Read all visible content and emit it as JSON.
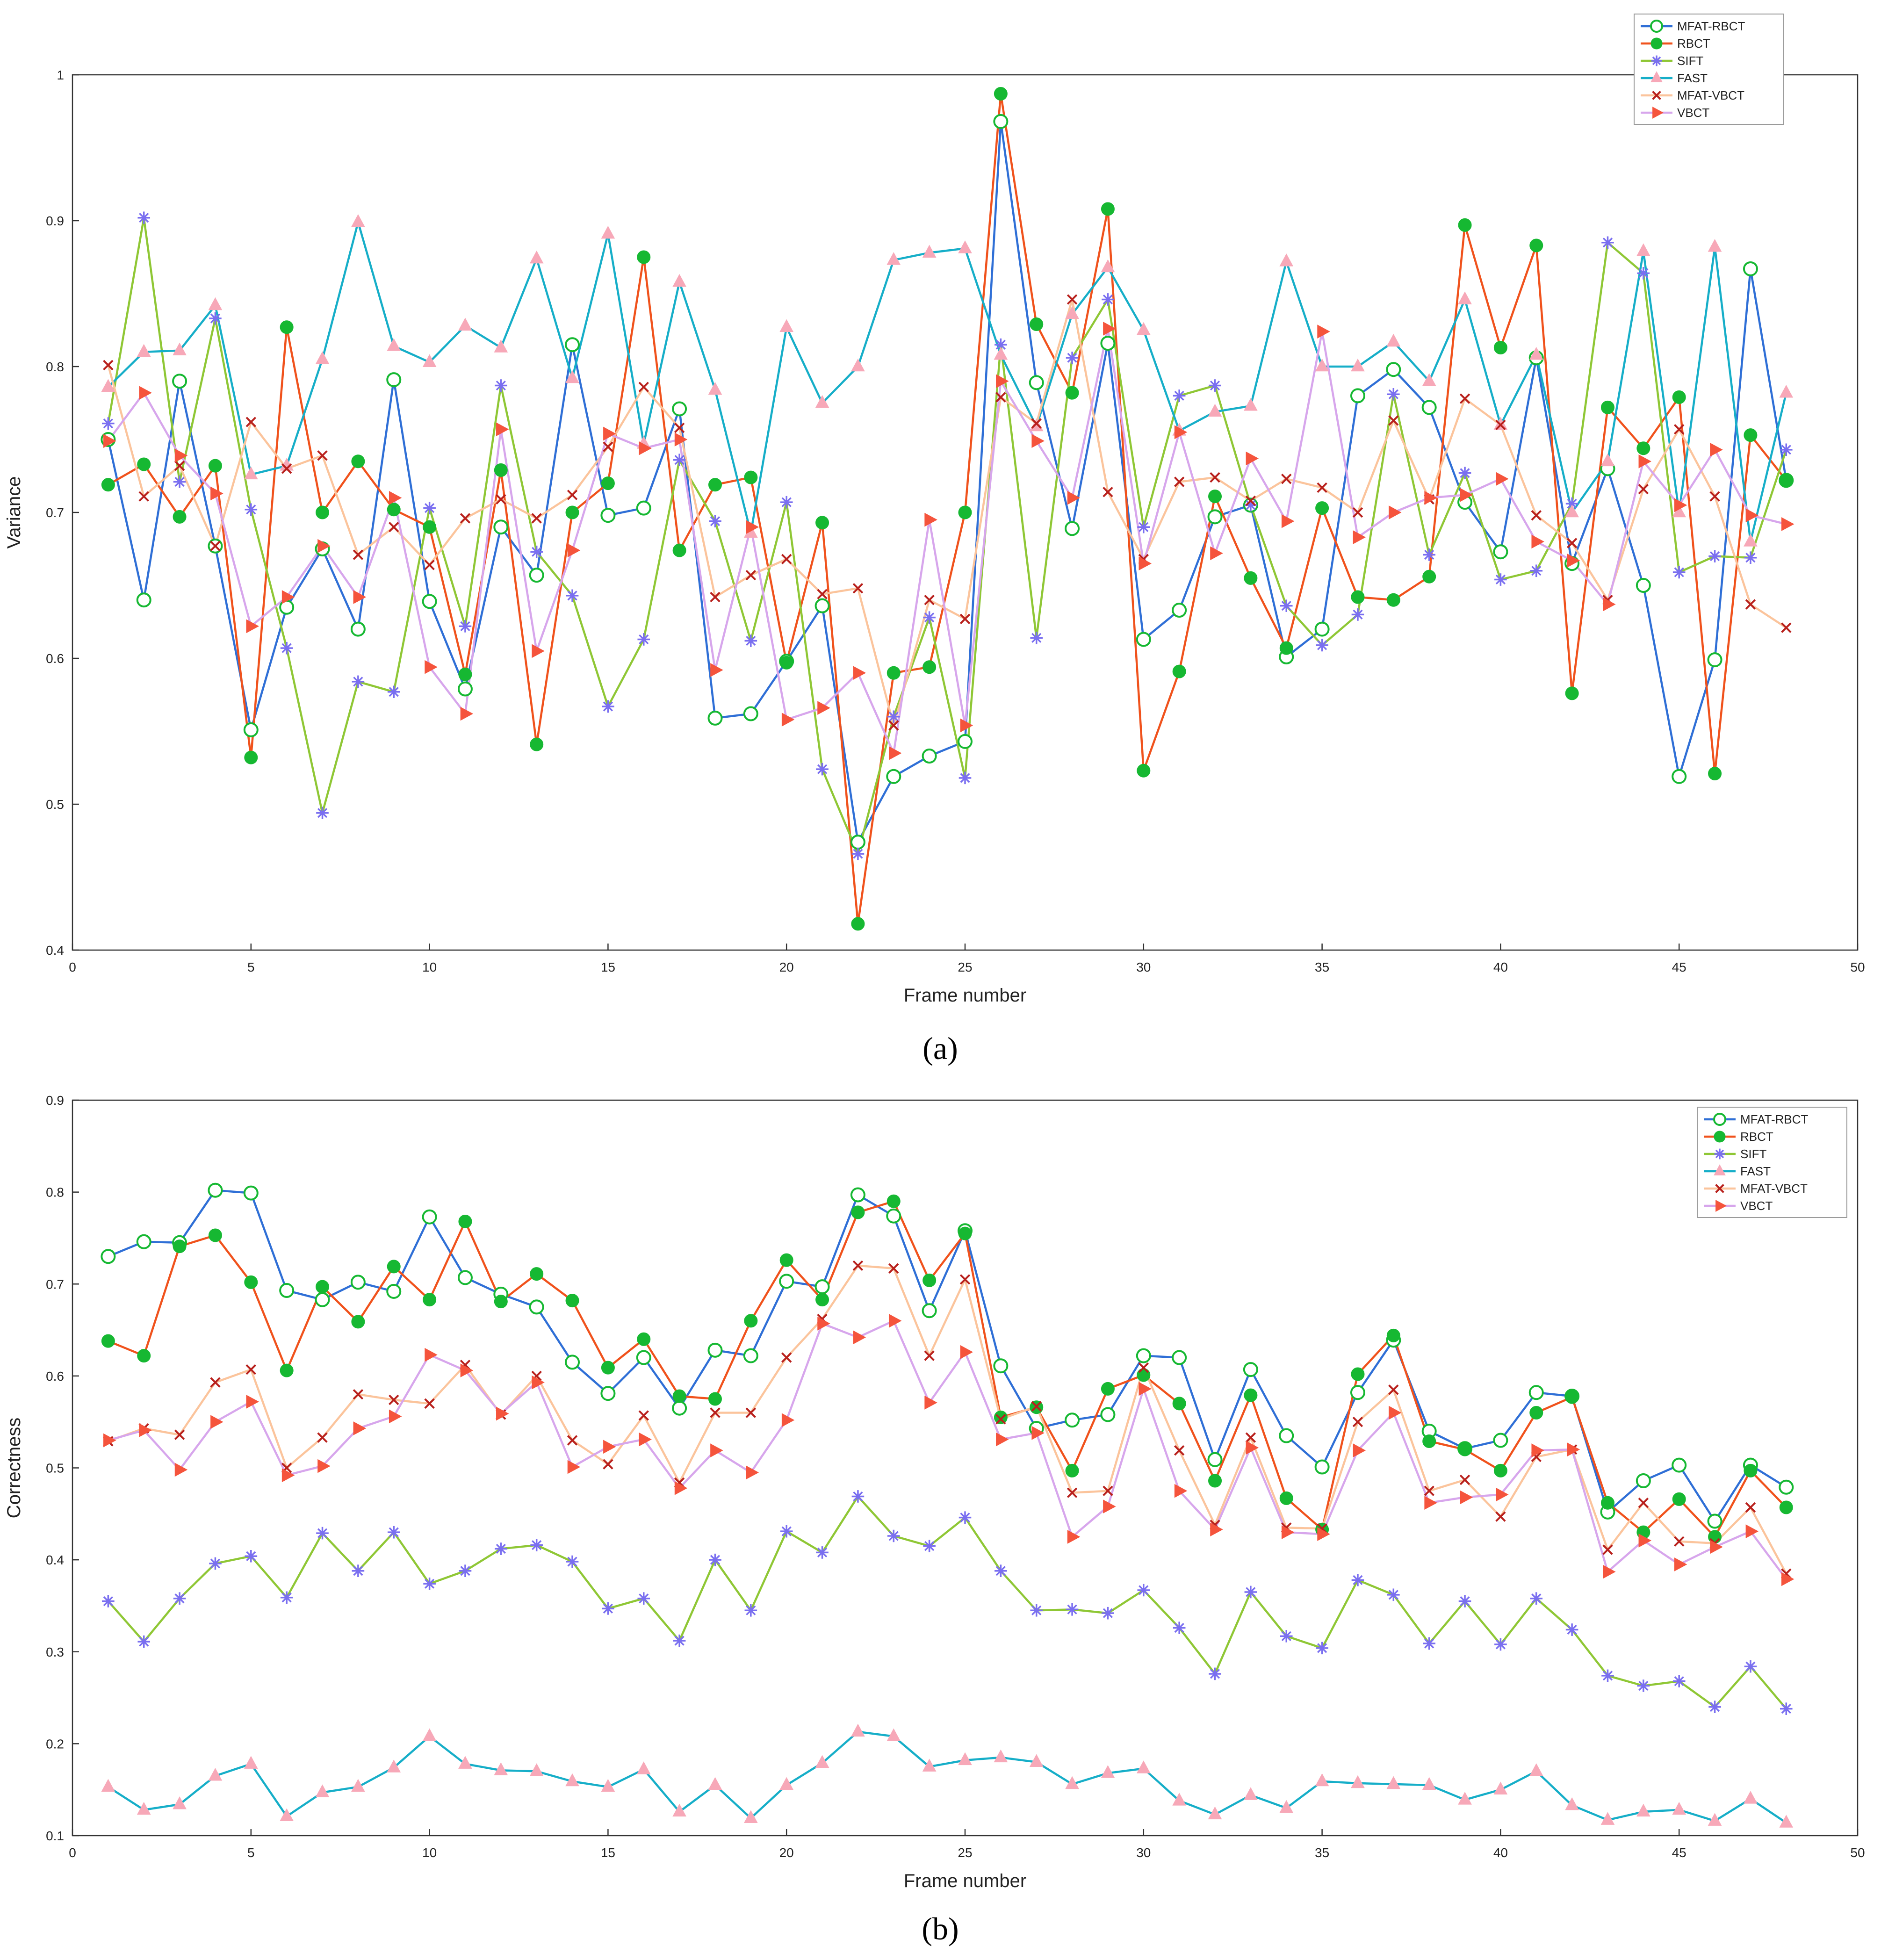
{
  "figure": {
    "panel_a_label": "(a)",
    "panel_b_label": "(b)"
  },
  "series_styles": [
    {
      "name": "MFAT-RBCT",
      "line_color": "#2f6fd6",
      "marker": "circle-open",
      "marker_color": "#16b832"
    },
    {
      "name": "RBCT",
      "line_color": "#f0521c",
      "marker": "circle-filled",
      "marker_color": "#16b832"
    },
    {
      "name": "SIFT",
      "line_color": "#8fc735",
      "marker": "asterisk",
      "marker_color": "#7a6ff0"
    },
    {
      "name": "FAST",
      "line_color": "#16aec8",
      "marker": "triangle-up",
      "marker_color": "#f7a8b8"
    },
    {
      "name": "MFAT-VBCT",
      "line_color": "#fbc49c",
      "marker": "cross",
      "marker_color": "#b8201c"
    },
    {
      "name": "VBCT",
      "line_color": "#d7a6ec",
      "marker": "triangle-right",
      "marker_color": "#f5543c"
    }
  ],
  "chart_data": [
    {
      "type": "line",
      "id": "a",
      "xlabel": "Frame number",
      "ylabel": "Variance",
      "xlim": [
        0,
        50
      ],
      "ylim": [
        0.4,
        1.0
      ],
      "xticks": [
        0,
        5,
        10,
        15,
        20,
        25,
        30,
        35,
        40,
        45,
        50
      ],
      "yticks": [
        0.4,
        0.5,
        0.6,
        0.7,
        0.8,
        0.9,
        1
      ],
      "x": [
        1,
        2,
        3,
        4,
        5,
        6,
        7,
        8,
        9,
        10,
        11,
        12,
        13,
        14,
        15,
        16,
        17,
        18,
        19,
        20,
        21,
        22,
        23,
        24,
        25,
        26,
        27,
        28,
        29,
        30,
        31,
        32,
        33,
        34,
        35,
        36,
        37,
        38,
        39,
        40,
        41,
        42,
        43,
        44,
        45,
        46,
        47,
        48
      ],
      "legend_position": "top-right",
      "series": [
        {
          "name": "MFAT-RBCT",
          "values": [
            0.75,
            0.64,
            0.79,
            0.677,
            0.551,
            0.635,
            0.675,
            0.62,
            0.791,
            0.639,
            0.579,
            0.69,
            0.657,
            0.815,
            0.698,
            0.703,
            0.771,
            0.559,
            0.562,
            0.598,
            0.636,
            0.474,
            0.519,
            0.533,
            0.543,
            0.968,
            0.789,
            0.689,
            0.816,
            0.613,
            0.633,
            0.697,
            0.705,
            0.601,
            0.62,
            0.78,
            0.798,
            0.772,
            0.707,
            0.673,
            0.806,
            0.665,
            0.73,
            0.65,
            0.519,
            0.599,
            0.867,
            0.722
          ]
        },
        {
          "name": "RBCT",
          "values": [
            0.719,
            0.733,
            0.697,
            0.732,
            0.532,
            0.827,
            0.7,
            0.735,
            0.702,
            0.69,
            0.589,
            0.729,
            0.541,
            0.7,
            0.72,
            0.875,
            0.674,
            0.719,
            0.724,
            0.597,
            0.693,
            0.418,
            0.59,
            0.594,
            0.7,
            0.987,
            0.829,
            0.782,
            0.908,
            0.523,
            0.591,
            0.711,
            0.655,
            0.607,
            0.703,
            0.642,
            0.64,
            0.656,
            0.897,
            0.813,
            0.883,
            0.576,
            0.772,
            0.744,
            0.779,
            0.521,
            0.753,
            0.722
          ]
        },
        {
          "name": "SIFT",
          "values": [
            0.761,
            0.902,
            0.721,
            0.833,
            0.702,
            0.607,
            0.494,
            0.584,
            0.577,
            0.703,
            0.622,
            0.787,
            0.673,
            0.643,
            0.567,
            0.613,
            0.736,
            0.694,
            0.612,
            0.707,
            0.524,
            0.466,
            0.56,
            0.628,
            0.518,
            0.815,
            0.614,
            0.806,
            0.846,
            0.69,
            0.78,
            0.787,
            0.705,
            0.636,
            0.609,
            0.63,
            0.781,
            0.671,
            0.727,
            0.654,
            0.66,
            0.706,
            0.885,
            0.864,
            0.659,
            0.67,
            0.669,
            0.743
          ]
        },
        {
          "name": "FAST",
          "values": [
            0.786,
            0.81,
            0.811,
            0.842,
            0.726,
            0.732,
            0.805,
            0.899,
            0.814,
            0.803,
            0.828,
            0.813,
            0.874,
            0.792,
            0.891,
            0.747,
            0.858,
            0.784,
            0.686,
            0.827,
            0.775,
            0.8,
            0.873,
            0.878,
            0.881,
            0.808,
            0.759,
            0.836,
            0.868,
            0.825,
            0.756,
            0.769,
            0.773,
            0.872,
            0.8,
            0.8,
            0.817,
            0.79,
            0.846,
            0.76,
            0.808,
            0.7,
            0.735,
            0.879,
            0.7,
            0.882,
            0.68,
            0.782
          ]
        },
        {
          "name": "MFAT-VBCT",
          "values": [
            0.801,
            0.711,
            0.732,
            0.677,
            0.762,
            0.73,
            0.739,
            0.671,
            0.69,
            0.664,
            0.696,
            0.709,
            0.696,
            0.712,
            0.745,
            0.786,
            0.758,
            0.642,
            0.657,
            0.668,
            0.644,
            0.648,
            0.554,
            0.64,
            0.627,
            0.779,
            0.761,
            0.846,
            0.714,
            0.668,
            0.721,
            0.724,
            0.708,
            0.723,
            0.717,
            0.7,
            0.763,
            0.709,
            0.778,
            0.76,
            0.698,
            0.679,
            0.64,
            0.716,
            0.757,
            0.711,
            0.637,
            0.621
          ]
        },
        {
          "name": "VBCT",
          "values": [
            0.749,
            0.782,
            0.739,
            0.713,
            0.622,
            0.642,
            0.677,
            0.642,
            0.71,
            0.594,
            0.562,
            0.757,
            0.605,
            0.674,
            0.754,
            0.744,
            0.75,
            0.592,
            0.69,
            0.558,
            0.566,
            0.59,
            0.535,
            0.695,
            0.554,
            0.79,
            0.749,
            0.71,
            0.826,
            0.665,
            0.755,
            0.672,
            0.737,
            0.694,
            0.824,
            0.683,
            0.7,
            0.71,
            0.712,
            0.723,
            0.68,
            0.667,
            0.637,
            0.735,
            0.705,
            0.743,
            0.698,
            0.692
          ]
        }
      ]
    },
    {
      "type": "line",
      "id": "b",
      "xlabel": "Frame number",
      "ylabel": "Correctness",
      "xlim": [
        0,
        50
      ],
      "ylim": [
        0.1,
        0.9
      ],
      "xticks": [
        0,
        5,
        10,
        15,
        20,
        25,
        30,
        35,
        40,
        45,
        50
      ],
      "yticks": [
        0.1,
        0.2,
        0.3,
        0.4,
        0.5,
        0.6,
        0.7,
        0.8,
        0.9
      ],
      "x": [
        1,
        2,
        3,
        4,
        5,
        6,
        7,
        8,
        9,
        10,
        11,
        12,
        13,
        14,
        15,
        16,
        17,
        18,
        19,
        20,
        21,
        22,
        23,
        24,
        25,
        26,
        27,
        28,
        29,
        30,
        31,
        32,
        33,
        34,
        35,
        36,
        37,
        38,
        39,
        40,
        41,
        42,
        43,
        44,
        45,
        46,
        47,
        48
      ],
      "legend_position": "top-right",
      "series": [
        {
          "name": "MFAT-RBCT",
          "values": [
            0.73,
            0.746,
            0.745,
            0.802,
            0.799,
            0.693,
            0.683,
            0.702,
            0.692,
            0.773,
            0.707,
            0.689,
            0.675,
            0.615,
            0.581,
            0.62,
            0.565,
            0.628,
            0.622,
            0.703,
            0.697,
            0.797,
            0.774,
            0.671,
            0.758,
            0.611,
            0.543,
            0.552,
            0.558,
            0.622,
            0.62,
            0.509,
            0.607,
            0.535,
            0.501,
            0.582,
            0.639,
            0.54,
            0.521,
            0.53,
            0.582,
            0.578,
            0.452,
            0.486,
            0.503,
            0.442,
            0.503,
            0.479
          ]
        },
        {
          "name": "RBCT",
          "values": [
            0.638,
            0.622,
            0.741,
            0.753,
            0.702,
            0.606,
            0.697,
            0.659,
            0.719,
            0.683,
            0.768,
            0.681,
            0.711,
            0.682,
            0.609,
            0.64,
            0.578,
            0.575,
            0.66,
            0.726,
            0.683,
            0.778,
            0.79,
            0.704,
            0.755,
            0.555,
            0.566,
            0.497,
            0.586,
            0.601,
            0.57,
            0.486,
            0.579,
            0.467,
            0.433,
            0.602,
            0.644,
            0.529,
            0.52,
            0.497,
            0.56,
            0.577,
            0.462,
            0.43,
            0.466,
            0.425,
            0.497,
            0.457
          ]
        },
        {
          "name": "SIFT",
          "values": [
            0.355,
            0.311,
            0.358,
            0.396,
            0.404,
            0.359,
            0.429,
            0.388,
            0.43,
            0.374,
            0.388,
            0.412,
            0.416,
            0.398,
            0.347,
            0.358,
            0.312,
            0.4,
            0.345,
            0.431,
            0.408,
            0.469,
            0.426,
            0.415,
            0.446,
            0.388,
            0.345,
            0.346,
            0.342,
            0.367,
            0.326,
            0.276,
            0.365,
            0.317,
            0.304,
            0.378,
            0.362,
            0.309,
            0.355,
            0.308,
            0.358,
            0.324,
            0.274,
            0.263,
            0.268,
            0.24,
            0.284,
            0.238
          ]
        },
        {
          "name": "FAST",
          "values": [
            0.153,
            0.128,
            0.134,
            0.165,
            0.178,
            0.121,
            0.147,
            0.153,
            0.174,
            0.208,
            0.178,
            0.171,
            0.17,
            0.159,
            0.153,
            0.172,
            0.126,
            0.155,
            0.119,
            0.155,
            0.179,
            0.213,
            0.208,
            0.175,
            0.182,
            0.185,
            0.18,
            0.156,
            0.168,
            0.173,
            0.138,
            0.123,
            0.144,
            0.13,
            0.159,
            0.157,
            0.156,
            0.155,
            0.139,
            0.15,
            0.17,
            0.133,
            0.117,
            0.126,
            0.128,
            0.116,
            0.14,
            0.114
          ]
        },
        {
          "name": "MFAT-VBCT",
          "values": [
            0.529,
            0.543,
            0.536,
            0.593,
            0.607,
            0.5,
            0.533,
            0.58,
            0.574,
            0.57,
            0.612,
            0.558,
            0.6,
            0.53,
            0.504,
            0.557,
            0.484,
            0.56,
            0.56,
            0.62,
            0.662,
            0.72,
            0.717,
            0.622,
            0.705,
            0.553,
            0.567,
            0.473,
            0.475,
            0.609,
            0.519,
            0.438,
            0.533,
            0.435,
            0.434,
            0.55,
            0.585,
            0.475,
            0.487,
            0.447,
            0.512,
            0.52,
            0.411,
            0.462,
            0.42,
            0.418,
            0.457,
            0.385
          ]
        },
        {
          "name": "VBCT",
          "values": [
            0.53,
            0.541,
            0.498,
            0.55,
            0.572,
            0.492,
            0.502,
            0.543,
            0.556,
            0.623,
            0.606,
            0.559,
            0.593,
            0.501,
            0.523,
            0.531,
            0.478,
            0.519,
            0.495,
            0.552,
            0.657,
            0.642,
            0.66,
            0.571,
            0.626,
            0.531,
            0.538,
            0.425,
            0.458,
            0.586,
            0.475,
            0.433,
            0.522,
            0.43,
            0.428,
            0.519,
            0.56,
            0.462,
            0.468,
            0.471,
            0.519,
            0.52,
            0.387,
            0.421,
            0.395,
            0.414,
            0.431,
            0.379
          ]
        }
      ]
    }
  ]
}
